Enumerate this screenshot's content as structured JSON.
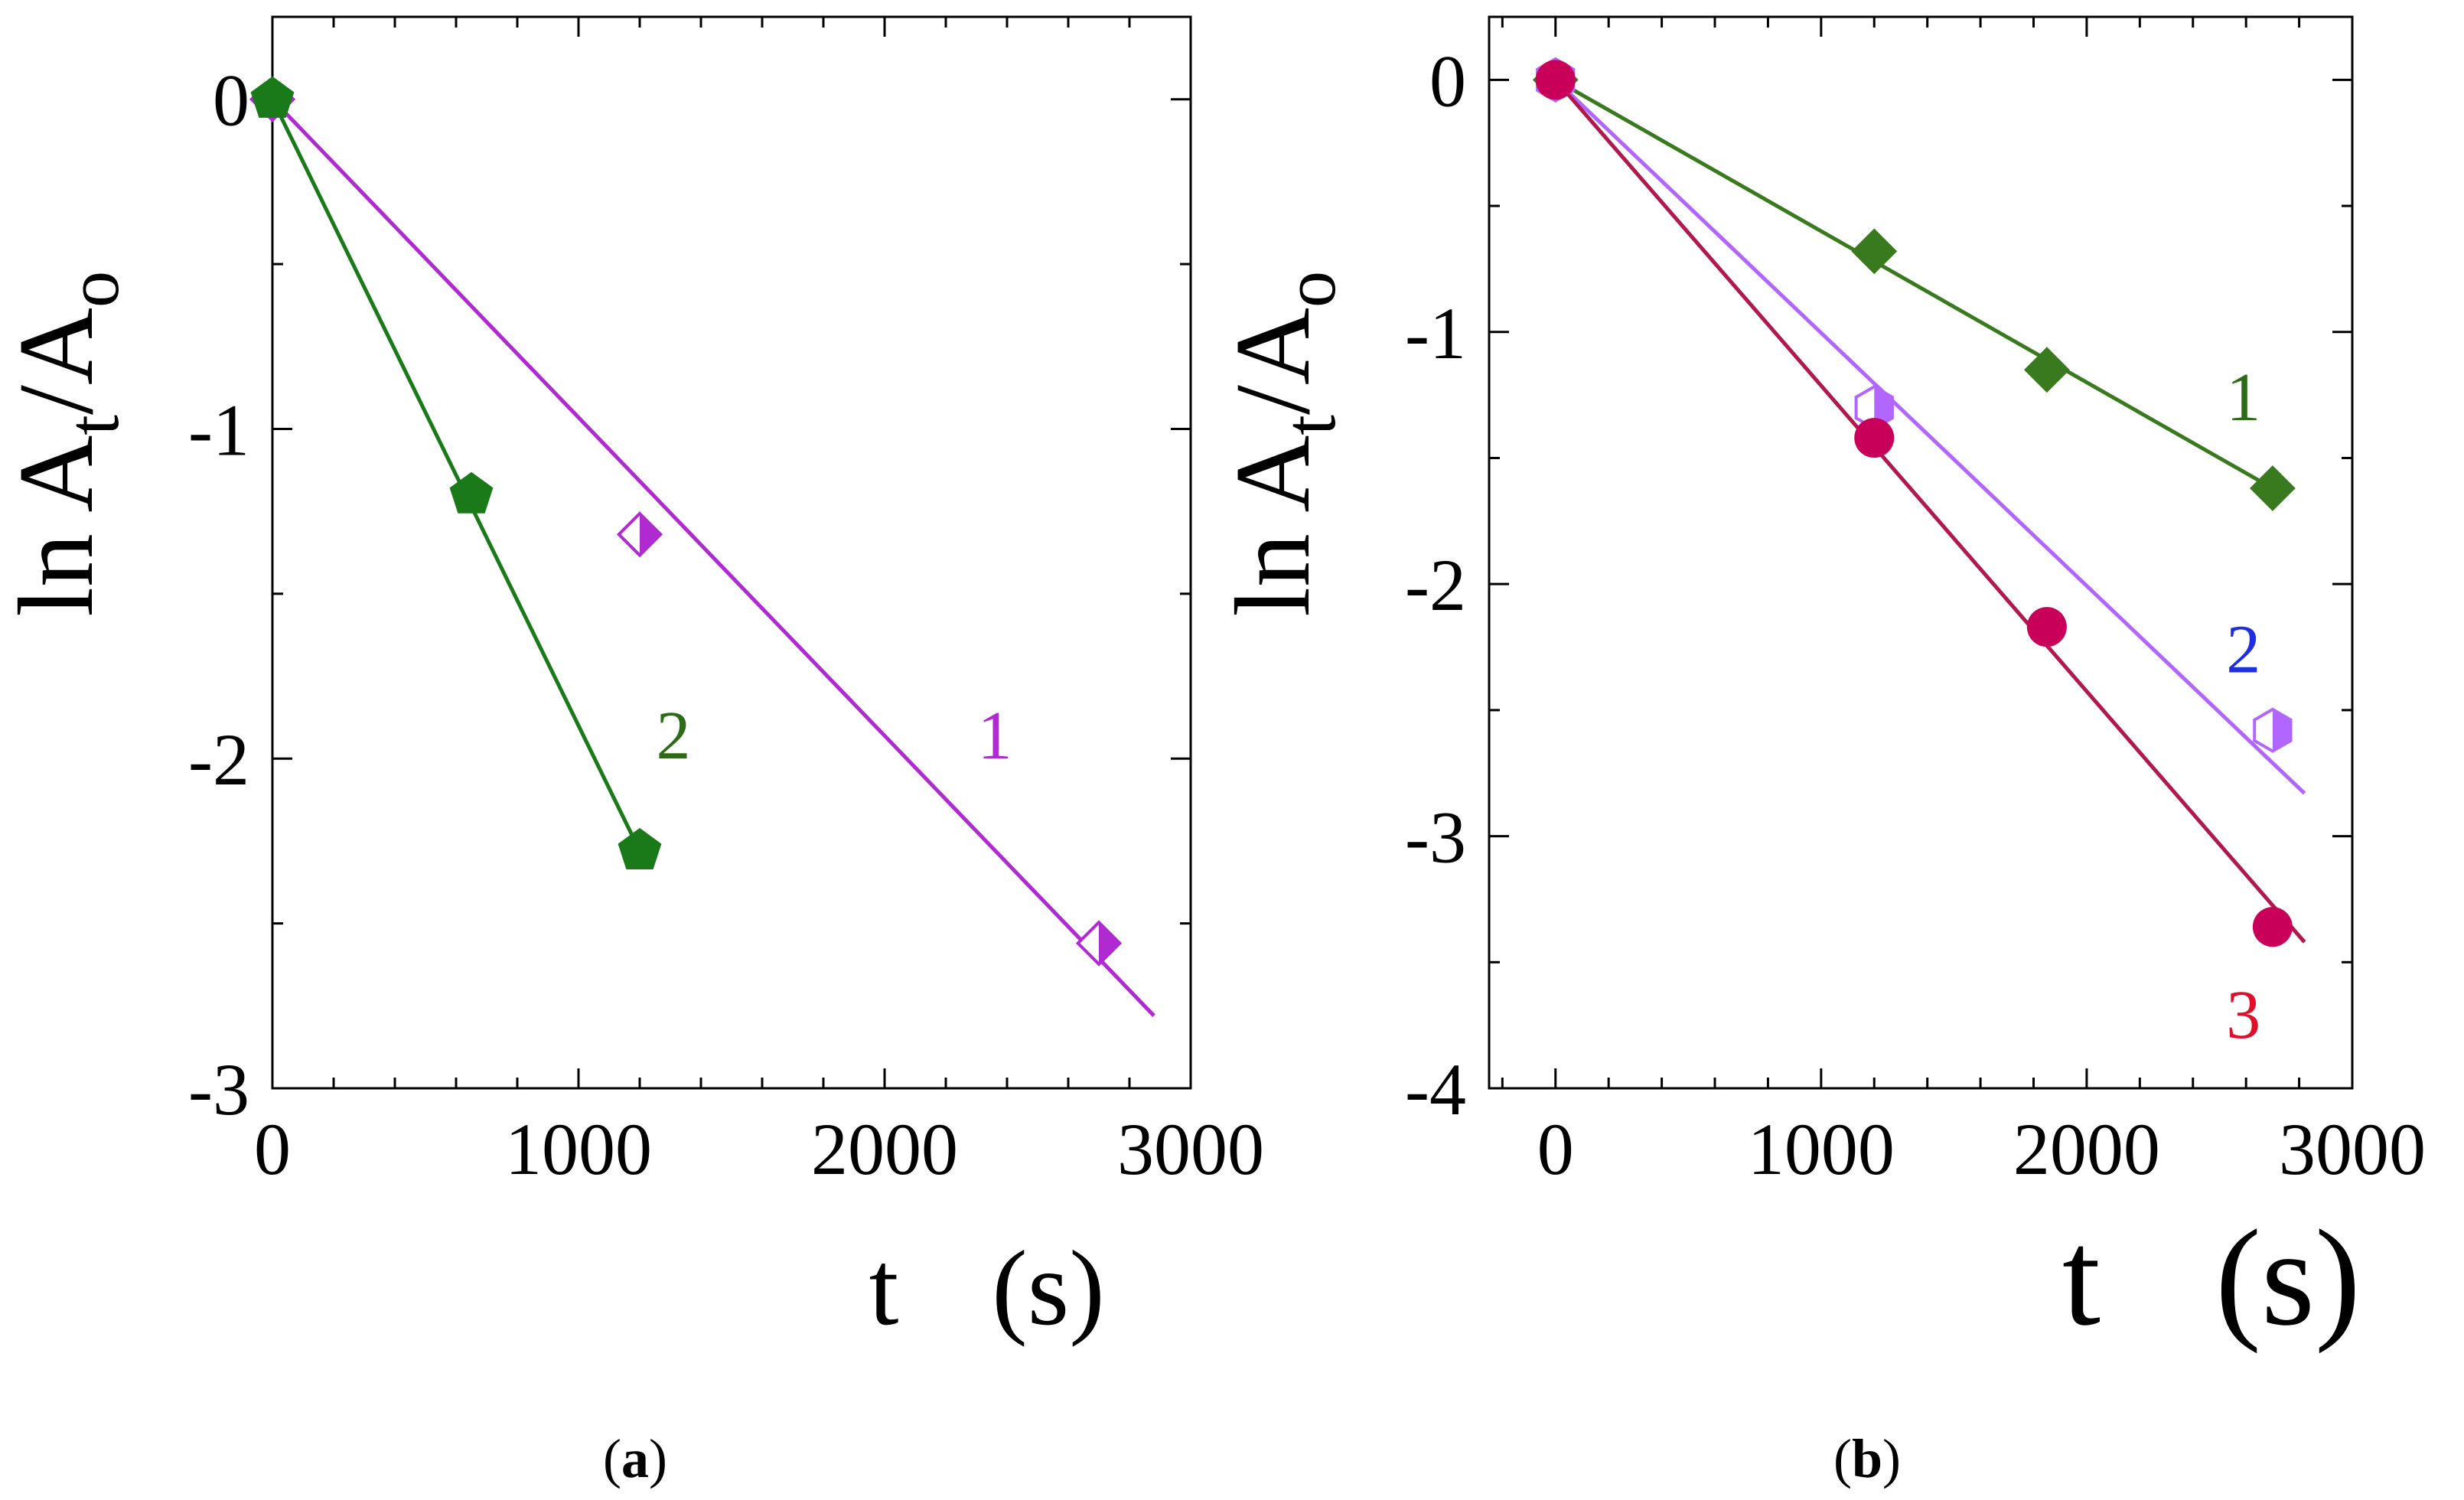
{
  "chart_data": [
    {
      "type": "scatter",
      "panel": "(a)",
      "panel_letter": "a",
      "xlabel": {
        "var": "t",
        "unit": "(s)"
      },
      "ylabel": {
        "prefix": "ln A",
        "sub1": "t",
        "mid": "/A",
        "sub2": "o"
      },
      "xlim": [
        0,
        3000
      ],
      "ylim": [
        -3,
        0.25
      ],
      "xticks": [
        0,
        1000,
        2000,
        3000
      ],
      "yticks": [
        0,
        -1,
        -2,
        -3
      ],
      "series": [
        {
          "name": "1",
          "color": "#b02ad1",
          "marker": "half-diamond",
          "points": [
            [
              0,
              0
            ],
            [
              1200,
              -1.32
            ],
            [
              2700,
              -2.56
            ]
          ],
          "fit": [
            [
              0,
              0
            ],
            [
              2880,
              -2.78
            ]
          ],
          "label_at": [
            2360,
            -2.0
          ]
        },
        {
          "name": "2",
          "color": "#1a7a1a",
          "label_color": "#2e6b18",
          "marker": "pentagon",
          "points": [
            [
              0,
              0
            ],
            [
              650,
              -1.2
            ],
            [
              1200,
              -2.28
            ]
          ],
          "fit": [
            [
              0,
              0
            ],
            [
              1200,
              -2.28
            ]
          ],
          "label_at": [
            1310,
            -2.0
          ]
        }
      ]
    },
    {
      "type": "scatter",
      "panel": "(b)",
      "panel_letter": "b",
      "xlabel": {
        "var": "t",
        "unit": "(s)"
      },
      "ylabel": {
        "prefix": "ln A",
        "sub1": "t",
        "mid": "/A",
        "sub2": "o"
      },
      "xlim": [
        -250,
        3000
      ],
      "ylim": [
        -4,
        0.25
      ],
      "xticks": [
        0,
        1000,
        2000,
        3000
      ],
      "yticks": [
        0,
        -1,
        -2,
        -3,
        -4
      ],
      "series": [
        {
          "name": "1",
          "color": "#3a7a1e",
          "label_color": "#2e6b18",
          "marker": "diamond",
          "points": [
            [
              0,
              0
            ],
            [
              1200,
              -0.68
            ],
            [
              1850,
              -1.15
            ],
            [
              2700,
              -1.62
            ]
          ],
          "fit": [
            [
              0,
              0
            ],
            [
              2700,
              -1.62
            ]
          ],
          "label_at": [
            2590,
            -1.35
          ]
        },
        {
          "name": "2",
          "color": "#b066ff",
          "label_color": "#1f2fe0",
          "marker": "half-hexagon",
          "points": [
            [
              0,
              0
            ],
            [
              1200,
              -1.3
            ],
            [
              2700,
              -2.58
            ]
          ],
          "fit": [
            [
              0,
              0
            ],
            [
              2820,
              -2.83
            ]
          ],
          "label_at": [
            2590,
            -2.35
          ]
        },
        {
          "name": "3",
          "color": "#c8005a",
          "line_color": "#b0184e",
          "label_color": "#e0102a",
          "marker": "circle",
          "points": [
            [
              0,
              0
            ],
            [
              1200,
              -1.42
            ],
            [
              1850,
              -2.17
            ],
            [
              2700,
              -3.36
            ]
          ],
          "fit": [
            [
              0,
              0
            ],
            [
              2820,
              -3.42
            ]
          ],
          "label_at": [
            2590,
            -3.8
          ]
        }
      ]
    }
  ]
}
